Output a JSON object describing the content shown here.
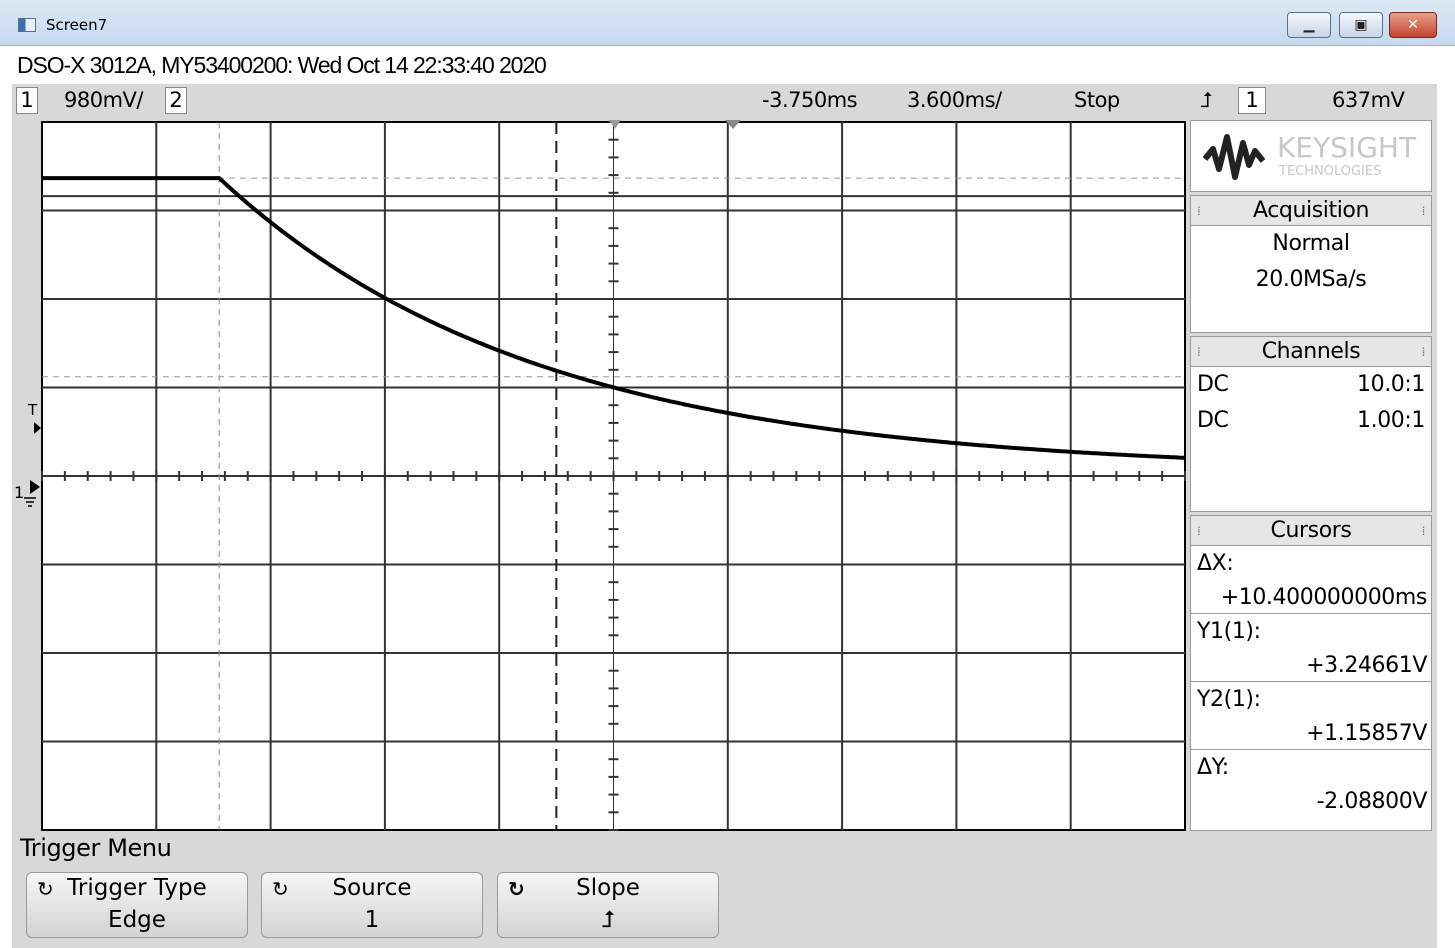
{
  "window": {
    "title": "Screen7",
    "minimize_glyph": "▁",
    "maximize_glyph": "▣",
    "close_glyph": "✕"
  },
  "info_line": "DSO-X 3012A, MY53400200: Wed Oct 14 22:33:40 2020",
  "status": {
    "ch1_number": "1",
    "ch1_scale": "980mV/",
    "ch2_number": "2",
    "delay": "-3.750ms",
    "timebase": "3.600ms/",
    "run_state": "Stop",
    "trigger_slope_symbol": "⮥",
    "trigger_source": "1",
    "trigger_level": "637mV"
  },
  "markers": {
    "trigger_level": "T",
    "ch1_ground": "1"
  },
  "brand": {
    "name": "KEYSIGHT",
    "subtitle": "TECHNOLOGIES"
  },
  "acquisition": {
    "header": "Acquisition",
    "mode": "Normal",
    "sample_rate": "20.0MSa/s"
  },
  "channels": {
    "header": "Channels",
    "rows": [
      {
        "coupling": "DC",
        "probe": "10.0:1"
      },
      {
        "coupling": "DC",
        "probe": "1.00:1"
      }
    ]
  },
  "cursors": {
    "header": "Cursors",
    "dx_label": "ΔX:",
    "dx_value": "+10.400000000ms",
    "y1_label": "Y1(1):",
    "y1_value": "+3.24661V",
    "y2_label": "Y2(1):",
    "y2_value": "+1.15857V",
    "dy_label": "ΔY:",
    "dy_value": "-2.08800V"
  },
  "softkeys": {
    "menu_title": "Trigger Menu",
    "keys": [
      {
        "top": "Trigger Type",
        "bottom": "Edge"
      },
      {
        "top": "Source",
        "bottom": "1"
      },
      {
        "top": "Slope",
        "bottom": "⮥"
      }
    ]
  },
  "waveform": {
    "description_units": "volts vs ms",
    "high_level_v": 3.25,
    "final_level_v": 0.0,
    "decay_start_div": 1.55,
    "time_constant_div": 2.9
  }
}
